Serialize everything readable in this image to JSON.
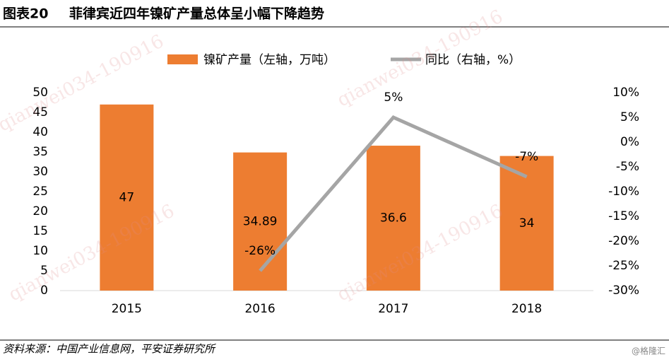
{
  "chart_data": {
    "type": "bar",
    "figure_label": "图表20",
    "title": "菲律宾近四年镍矿产量总体呈小幅下降趋势",
    "categories": [
      "2015",
      "2016",
      "2017",
      "2018"
    ],
    "series": [
      {
        "name": "镍矿产量（左轴，万吨）",
        "type": "bar",
        "color": "#ED7D31",
        "values": [
          47,
          34.89,
          36.6,
          34
        ]
      },
      {
        "name": "同比（右轴，%）",
        "type": "line",
        "axis": "y2",
        "color": "#A5A5A5",
        "values": [
          null,
          -26,
          5,
          -7
        ],
        "value_labels": [
          null,
          "-26%",
          "5%",
          "-7%"
        ]
      }
    ],
    "ylim": [
      0,
      50
    ],
    "yticks": [
      0,
      5,
      10,
      15,
      20,
      25,
      30,
      35,
      40,
      45,
      50
    ],
    "y2lim": [
      -30,
      10
    ],
    "y2ticks": [
      {
        "value": -30,
        "label": "-30%"
      },
      {
        "value": -25,
        "label": "-25%"
      },
      {
        "value": -20,
        "label": "-20%"
      },
      {
        "value": -15,
        "label": "-15%"
      },
      {
        "value": -10,
        "label": "-10%"
      },
      {
        "value": -5,
        "label": "-5%"
      },
      {
        "value": 0,
        "label": "0%"
      },
      {
        "value": 5,
        "label": "5%"
      },
      {
        "value": 10,
        "label": "10%"
      }
    ],
    "source": "资料来源：中国产业信息网，平安证券研究所",
    "watermark": "qianwei034-190916",
    "credit": "@格隆汇"
  }
}
